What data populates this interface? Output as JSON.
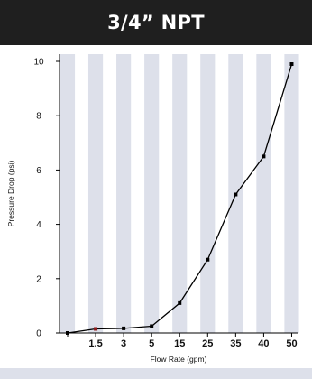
{
  "header": {
    "title": "3/4” NPT"
  },
  "colors": {
    "title_bg": "#1f1f1f",
    "title_text": "#ffffff",
    "stripe": "#dde0ea",
    "line": "#000000",
    "marker_special": "#8b1a1a"
  },
  "chart_data": {
    "type": "line",
    "title": "3/4” NPT",
    "xlabel": "Flow Rate (gpm)",
    "ylabel": "Pressure Drop (psi)",
    "x_scale": "categorical",
    "categories": [
      "0",
      "1.5",
      "3",
      "5",
      "15",
      "25",
      "35",
      "40",
      "50"
    ],
    "x_tick_labels": [
      "",
      "1.5",
      "3",
      "5",
      "15",
      "25",
      "35",
      "40",
      "50"
    ],
    "series": [
      {
        "values": [
          0.0,
          0.15,
          0.17,
          0.25,
          1.1,
          2.7,
          5.1,
          6.5,
          9.9
        ]
      }
    ],
    "ylim": [
      0,
      10
    ],
    "yticks": [
      "0",
      "2",
      "4",
      "6",
      "8",
      "10"
    ],
    "grid": "alternating vertical stripes",
    "legend": "none"
  }
}
